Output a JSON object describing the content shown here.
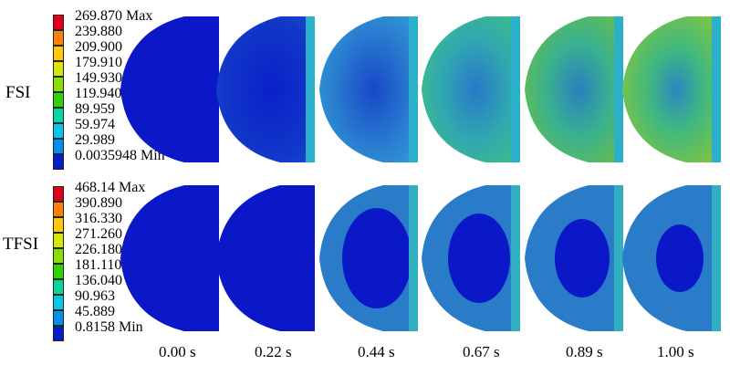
{
  "rows": [
    {
      "label": "FSI",
      "legend": {
        "labels": [
          "269.870 Max",
          "239.880",
          "209.900",
          "179.910",
          "149.930",
          "119.940",
          "89.959",
          "59.974",
          "29.989",
          "0.0035948 Min"
        ]
      }
    },
    {
      "label": "TFSI",
      "legend": {
        "labels": [
          "468.14 Max",
          "390.890",
          "316.330",
          "271.260",
          "226.180",
          "181.110",
          "136.040",
          "90.963",
          "45.889",
          "0.8158 Min"
        ]
      }
    }
  ],
  "legend_colors": [
    "#e0001a",
    "#ff7f00",
    "#ffc800",
    "#d6e800",
    "#8cdc00",
    "#2fd400",
    "#00d8a0",
    "#00c8e8",
    "#0090f0",
    "#0020c8"
  ],
  "times": [
    "0.00 s",
    "0.22 s",
    "0.44 s",
    "0.67 s",
    "0.89 s",
    "1.00 s"
  ]
}
